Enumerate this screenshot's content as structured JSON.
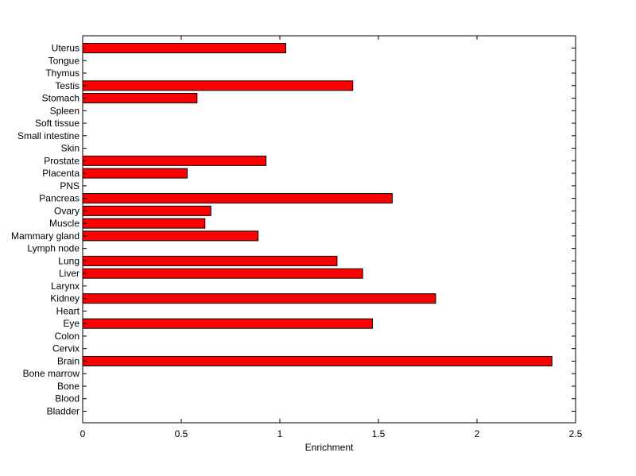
{
  "chart_data": {
    "type": "bar",
    "orientation": "horizontal",
    "xlabel": "Enrichment",
    "ylabel": "",
    "title": "",
    "xlim": [
      0,
      2.5
    ],
    "xticks": [
      0,
      0.5,
      1,
      1.5,
      2,
      2.5
    ],
    "xtick_labels": [
      "0",
      "0.5",
      "1",
      "1.5",
      "2",
      "2.5"
    ],
    "bar_color": "#ff0000",
    "bar_edge_color": "#000000",
    "categories": [
      "Uterus",
      "Tongue",
      "Thymus",
      "Testis",
      "Stomach",
      "Spleen",
      "Soft tissue",
      "Small intestine",
      "Skin",
      "Prostate",
      "Placenta",
      "PNS",
      "Pancreas",
      "Ovary",
      "Muscle",
      "Mammary gland",
      "Lymph node",
      "Lung",
      "Liver",
      "Larynx",
      "Kidney",
      "Heart",
      "Eye",
      "Colon",
      "Cervix",
      "Brain",
      "Bone marrow",
      "Bone",
      "Blood",
      "Bladder"
    ],
    "values": [
      1.03,
      0,
      0,
      1.37,
      0.58,
      0,
      0,
      0,
      0,
      0.93,
      0.53,
      0,
      1.57,
      0.65,
      0.62,
      0.89,
      0,
      1.29,
      1.42,
      0,
      1.79,
      0,
      1.47,
      0,
      0,
      2.38,
      0,
      0,
      0,
      0
    ]
  }
}
